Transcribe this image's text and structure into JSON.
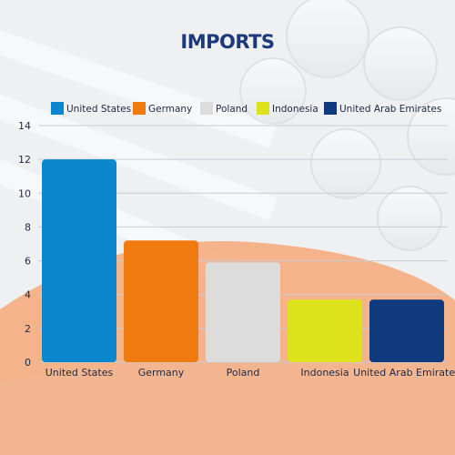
{
  "colors": {
    "background": "#eef0f2",
    "accent_blob": "#f5a878",
    "title": "#1d3a78",
    "axis_text": "#1e2a45",
    "grid": "#c9ccd2"
  },
  "chart_data": {
    "type": "bar",
    "title": "IMPORTS",
    "xlabel": "",
    "ylabel": "",
    "ylim": [
      0,
      14
    ],
    "yticks": [
      0,
      2,
      4,
      6,
      8,
      10,
      12,
      14
    ],
    "grid": true,
    "legend_position": "top",
    "categories": [
      "United States",
      "Germany",
      "Poland",
      "Indonesia",
      "United Arab Emirates"
    ],
    "values": [
      12,
      7.2,
      5.9,
      3.7,
      3.7
    ],
    "bar_colors": [
      "#0b87cf",
      "#ef7b10",
      "#dcdcdc",
      "#dde21b",
      "#0f3a7d"
    ],
    "legend": [
      "United States",
      "Germany",
      "Poland",
      "Indonesia",
      "United Arab Emirates"
    ]
  }
}
